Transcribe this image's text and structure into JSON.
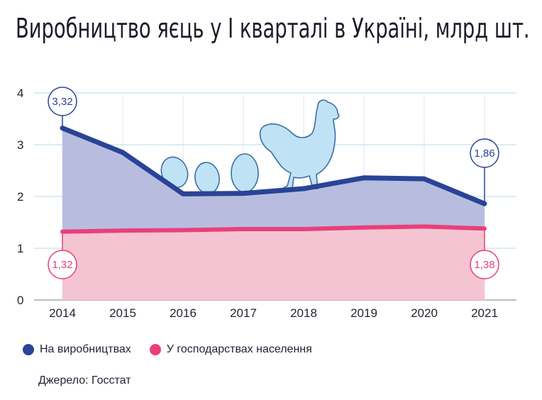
{
  "title": "Виробництво яєць у І кварталі в Україні, млрд шт.",
  "source": "Джерело: Госстат",
  "colors": {
    "industrial_line": "#2a4396",
    "industrial_fill": "#b8bde0",
    "household_line": "#e8407a",
    "household_fill": "#f5c4d2",
    "grid": "#cfe6f2",
    "egg_fill": "#bfe3f5",
    "egg_stroke": "#3a6fa3"
  },
  "chart_data": {
    "type": "area",
    "x": [
      "2014",
      "2015",
      "2016",
      "2017",
      "2018",
      "2019",
      "2020",
      "2021"
    ],
    "ylim": [
      0,
      4
    ],
    "yticks": [
      "0",
      "1",
      "2",
      "3",
      "4"
    ],
    "grid": true,
    "legend": "bottom-left",
    "series": [
      {
        "name": "На виробництвах",
        "values": [
          3.32,
          2.85,
          2.05,
          2.06,
          2.15,
          2.36,
          2.34,
          1.86
        ]
      },
      {
        "name": "У господарствах населення",
        "values": [
          1.32,
          1.34,
          1.35,
          1.37,
          1.37,
          1.4,
          1.42,
          1.38
        ]
      }
    ],
    "annotations": [
      {
        "series": 0,
        "index": 0,
        "label": "3,32"
      },
      {
        "series": 0,
        "index": 7,
        "label": "1,86"
      },
      {
        "series": 1,
        "index": 0,
        "label": "1,32"
      },
      {
        "series": 1,
        "index": 7,
        "label": "1,38"
      }
    ]
  }
}
